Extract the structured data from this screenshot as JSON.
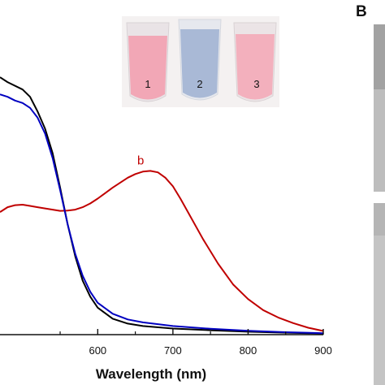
{
  "chart_data": {
    "type": "line",
    "xlabel": "Wavelength (nm)",
    "ylabel": "",
    "xlim": [
      470,
      900
    ],
    "ylim": [
      0,
      1.1
    ],
    "x_ticks": [
      "600",
      "700",
      "800",
      "900"
    ],
    "grid": false,
    "series": [
      {
        "key": "a",
        "color": "#000000",
        "points": [
          [
            470,
            1.05
          ],
          [
            480,
            1.03
          ],
          [
            500,
            1.0
          ],
          [
            510,
            0.97
          ],
          [
            520,
            0.91
          ],
          [
            530,
            0.84
          ],
          [
            540,
            0.74
          ],
          [
            550,
            0.6
          ],
          [
            560,
            0.45
          ],
          [
            570,
            0.32
          ],
          [
            580,
            0.22
          ],
          [
            590,
            0.155
          ],
          [
            600,
            0.11
          ],
          [
            620,
            0.065
          ],
          [
            640,
            0.045
          ],
          [
            660,
            0.035
          ],
          [
            700,
            0.025
          ],
          [
            750,
            0.018
          ],
          [
            800,
            0.012
          ],
          [
            850,
            0.008
          ],
          [
            900,
            0.005
          ]
        ]
      },
      {
        "key": "b",
        "label": "b",
        "color": "#c00000",
        "points": [
          [
            470,
            0.5
          ],
          [
            480,
            0.52
          ],
          [
            490,
            0.528
          ],
          [
            500,
            0.53
          ],
          [
            510,
            0.525
          ],
          [
            520,
            0.52
          ],
          [
            530,
            0.515
          ],
          [
            540,
            0.51
          ],
          [
            550,
            0.505
          ],
          [
            560,
            0.506
          ],
          [
            570,
            0.51
          ],
          [
            580,
            0.52
          ],
          [
            590,
            0.535
          ],
          [
            600,
            0.555
          ],
          [
            620,
            0.6
          ],
          [
            640,
            0.64
          ],
          [
            650,
            0.655
          ],
          [
            660,
            0.665
          ],
          [
            670,
            0.668
          ],
          [
            680,
            0.662
          ],
          [
            690,
            0.64
          ],
          [
            700,
            0.605
          ],
          [
            710,
            0.555
          ],
          [
            720,
            0.5
          ],
          [
            740,
            0.39
          ],
          [
            760,
            0.29
          ],
          [
            780,
            0.205
          ],
          [
            800,
            0.145
          ],
          [
            820,
            0.1
          ],
          [
            840,
            0.07
          ],
          [
            860,
            0.047
          ],
          [
            880,
            0.028
          ],
          [
            900,
            0.015
          ]
        ]
      },
      {
        "key": "c",
        "color": "#0000c0",
        "points": [
          [
            470,
            0.98
          ],
          [
            480,
            0.97
          ],
          [
            490,
            0.955
          ],
          [
            500,
            0.945
          ],
          [
            510,
            0.925
          ],
          [
            520,
            0.885
          ],
          [
            530,
            0.82
          ],
          [
            540,
            0.72
          ],
          [
            550,
            0.59
          ],
          [
            560,
            0.45
          ],
          [
            570,
            0.33
          ],
          [
            580,
            0.24
          ],
          [
            590,
            0.175
          ],
          [
            600,
            0.13
          ],
          [
            620,
            0.085
          ],
          [
            640,
            0.062
          ],
          [
            660,
            0.05
          ],
          [
            700,
            0.035
          ],
          [
            750,
            0.024
          ],
          [
            800,
            0.016
          ],
          [
            850,
            0.01
          ],
          [
            900,
            0.006
          ]
        ]
      }
    ]
  },
  "inset": {
    "vials": [
      {
        "number": "1",
        "color": "#f2a7b6"
      },
      {
        "number": "2",
        "color": "#a9b9d6"
      },
      {
        "number": "3",
        "color": "#f3b0bd"
      }
    ]
  },
  "panel_b": {
    "letter": "B"
  }
}
